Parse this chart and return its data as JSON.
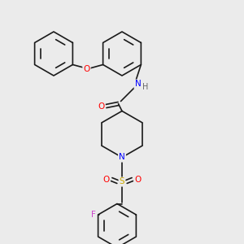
{
  "background_color": "#ebebeb",
  "bond_color": "#1a1a1a",
  "bond_width": 1.2,
  "atom_colors": {
    "O": "#ff0000",
    "N": "#0000ff",
    "F": "#cc44cc",
    "S": "#ccaa00",
    "H": "#666666",
    "C": "#1a1a1a"
  },
  "font_size": 7.5
}
